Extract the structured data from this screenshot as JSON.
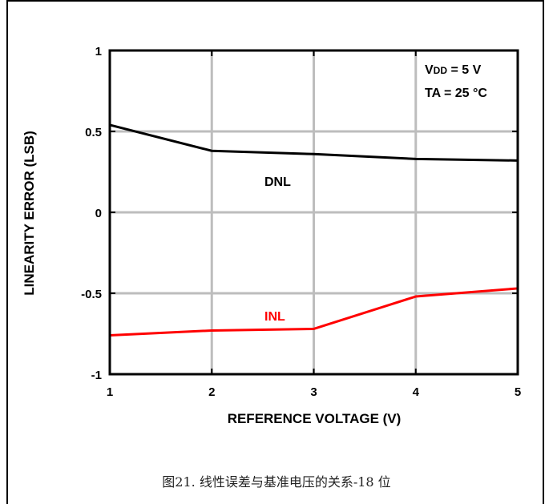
{
  "chart_data": {
    "type": "line",
    "title": "",
    "xlabel": "REFERENCE VOLTAGE (V)",
    "ylabel": "LINEARITY  ERROR (LSB)",
    "xlim": [
      1,
      5
    ],
    "ylim": [
      -1,
      1
    ],
    "xticks": [
      1,
      2,
      3,
      4,
      5
    ],
    "yticks": [
      1,
      0.5,
      0,
      -0.5,
      -1
    ],
    "ytick_labels": [
      "1",
      "0.5",
      "0",
      "-0.5",
      "-1"
    ],
    "grid": true,
    "series": [
      {
        "name": "DNL",
        "color": "#000000",
        "x": [
          1,
          2,
          3,
          4,
          5
        ],
        "y": [
          0.54,
          0.38,
          0.36,
          0.33,
          0.32
        ]
      },
      {
        "name": "INL",
        "color": "#ff0000",
        "x": [
          1,
          2,
          3,
          4,
          5
        ],
        "y": [
          -0.76,
          -0.73,
          -0.72,
          -0.52,
          -0.47
        ]
      }
    ],
    "annotations": {
      "vdd_main": "V",
      "vdd_sub": "DD",
      "vdd_rest": " = 5 V",
      "ta": "TA = 25 °C"
    }
  },
  "caption": "图21. 线性误差与基准电压的关系-18 位"
}
